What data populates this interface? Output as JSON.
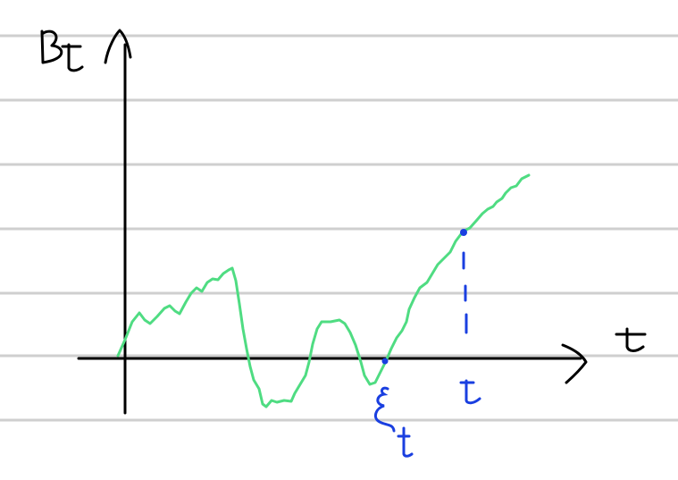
{
  "labels": {
    "y_axis": "Bt",
    "x_axis": "t",
    "marker_xi": "ξ",
    "marker_xi_sub": "t",
    "marker_t": "t"
  },
  "colors": {
    "rule_lines": "#cfcfcf",
    "axes": "#000000",
    "path": "#4fdc82",
    "markers": "#1a3fe0"
  }
}
